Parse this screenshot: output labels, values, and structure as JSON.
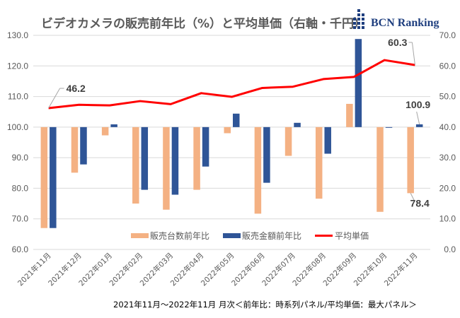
{
  "chart_data": {
    "type": "bar",
    "title": "ビデオカメラの販売前年比（%）と平均単価（右軸・千円）",
    "brand": "BCN Ranking",
    "footer": "2021年11月～2022年11月 月次＜前年比：時系列パネル/平均単価：最大パネル＞",
    "categories": [
      "2021年11月",
      "2021年12月",
      "2022年01月",
      "2022年02月",
      "2022年03月",
      "2022年04月",
      "2022年05月",
      "2022年06月",
      "2022年07月",
      "2022年08月",
      "2022年09月",
      "2022年10月",
      "2022年11月"
    ],
    "left_axis": {
      "ylim": [
        60,
        130
      ],
      "ticks": [
        "60.0",
        "70.0",
        "80.0",
        "90.0",
        "100.0",
        "110.0",
        "120.0",
        "130.0"
      ],
      "baseline": 100
    },
    "right_axis": {
      "ylim": [
        0,
        70
      ],
      "ticks": [
        "0.0",
        "10.0",
        "20.0",
        "30.0",
        "40.0",
        "50.0",
        "60.0",
        "70.0"
      ]
    },
    "grid": true,
    "legend_position": "bottom-center",
    "series": [
      {
        "name": "販売台数前年比",
        "type": "bar",
        "axis": "left",
        "color": "#f4b183",
        "values": [
          67.0,
          85.1,
          97.3,
          75.0,
          73.0,
          79.5,
          98.0,
          71.7,
          90.6,
          76.6,
          107.6,
          72.3,
          78.4
        ]
      },
      {
        "name": "販売金額前年比",
        "type": "bar",
        "axis": "left",
        "color": "#2f5597",
        "values": [
          67.0,
          87.8,
          100.9,
          79.5,
          77.9,
          87.1,
          104.4,
          81.8,
          101.4,
          91.3,
          128.8,
          99.8,
          100.9
        ]
      },
      {
        "name": "平均単価",
        "type": "line",
        "axis": "right",
        "color": "#ff0000",
        "values": [
          46.2,
          47.3,
          47.1,
          48.5,
          47.5,
          51.1,
          49.9,
          52.8,
          53.2,
          55.7,
          56.4,
          61.9,
          60.3
        ]
      }
    ],
    "annotations": [
      {
        "series": "平均単価",
        "category": "2021年11月",
        "text": "46.2"
      },
      {
        "series": "平均単価",
        "category": "2022年11月",
        "text": "60.3"
      },
      {
        "series": "販売金額前年比",
        "category": "2022年11月",
        "text": "100.9"
      },
      {
        "series": "販売台数前年比",
        "category": "2022年11月",
        "text": "78.4"
      }
    ]
  }
}
